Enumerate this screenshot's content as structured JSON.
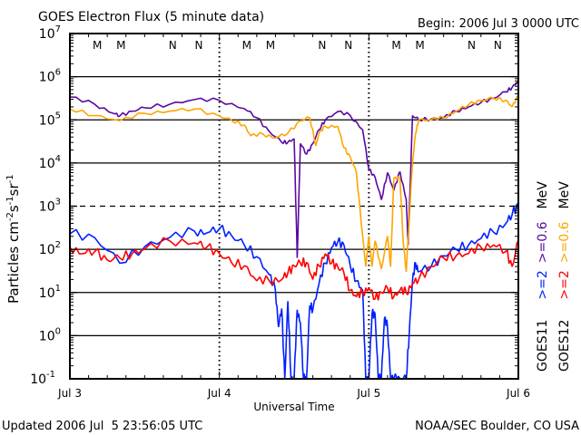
{
  "chart_data": {
    "type": "line",
    "title": "GOES Electron Flux (5 minute data)",
    "begin_label": "Begin: 2006 Jul 3 0000 UTC",
    "xlabel": "Universal Time",
    "ylabel_main": "Particles cm",
    "ylabel_parts": [
      "-2",
      "s",
      "-1",
      "sr",
      "-1"
    ],
    "x_unit": "hours since 2006 Jul 3 0000 UTC",
    "xlim": [
      0,
      72
    ],
    "x_ticks": [
      {
        "h": 0,
        "label": "Jul 3"
      },
      {
        "h": 24,
        "label": "Jul 4"
      },
      {
        "h": 48,
        "label": "Jul 5"
      },
      {
        "h": 72,
        "label": "Jul 6"
      }
    ],
    "y_scale": "log",
    "ylim_log10": [
      -1,
      7
    ],
    "y_ticks": [
      {
        "base": "10",
        "exp": "7"
      },
      {
        "base": "10",
        "exp": "6"
      },
      {
        "base": "10",
        "exp": "5"
      },
      {
        "base": "10",
        "exp": "4"
      },
      {
        "base": "10",
        "exp": "3"
      },
      {
        "base": "10",
        "exp": "2"
      },
      {
        "base": "10",
        "exp": "1"
      },
      {
        "base": "10",
        "exp": "0"
      },
      {
        "base": "10",
        "exp": "-1"
      }
    ],
    "dashed_threshold_log10": 3,
    "grid": true,
    "markers": [
      {
        "label": "M",
        "color": "#ff0000",
        "hours": [
          4.4,
          28.4,
          52.4
        ]
      },
      {
        "label": "M",
        "color": "#0020ff",
        "hours": [
          8.2,
          32.2,
          56.2
        ]
      },
      {
        "label": "N",
        "color": "#ff0000",
        "hours": [
          16.5,
          40.5,
          64.5
        ]
      },
      {
        "label": "N",
        "color": "#0020ff",
        "hours": [
          20.7,
          44.7,
          68.7
        ]
      }
    ],
    "legend": {
      "placement": "right-vertical",
      "columns": [
        {
          "satellite": "GOES11",
          "low": ">=2",
          "low_color": "#0020ff",
          "high": ">=0.6",
          "high_color": "#5a0aa0",
          "unit": "MeV"
        },
        {
          "satellite": "GOES12",
          "low": ">=2",
          "low_color": "#ff0000",
          "high": ">=0.6",
          "high_color": "#ffa500",
          "unit": "MeV"
        }
      ]
    },
    "series": [
      {
        "name": "GOES11 >=0.6 MeV",
        "color": "#5a0aa0",
        "x": [
          0,
          4,
          7,
          8,
          10,
          12,
          16,
          20,
          24,
          28,
          30,
          32,
          34,
          35,
          36,
          36.5,
          37,
          38,
          39,
          40,
          41,
          43,
          45,
          47,
          48,
          49,
          50,
          51,
          52,
          53,
          54,
          54.3,
          55,
          56,
          58,
          60,
          62,
          64,
          66,
          68,
          70,
          71,
          72
        ],
        "log10": [
          5.53,
          5.36,
          5.15,
          5.09,
          5.2,
          5.28,
          5.36,
          5.47,
          5.45,
          5.26,
          5.05,
          4.73,
          4.48,
          4.48,
          4.56,
          1.8,
          4.45,
          4.2,
          4.45,
          4.77,
          5.0,
          5.19,
          5.1,
          4.77,
          3.85,
          3.67,
          3.15,
          3.78,
          3.36,
          3.8,
          3.15,
          2.1,
          5.1,
          5.0,
          5.02,
          5.05,
          5.2,
          5.3,
          5.4,
          5.5,
          5.65,
          5.75,
          5.9
        ]
      },
      {
        "name": "GOES12 >=0.6 MeV",
        "color": "#ffa500",
        "x": [
          0,
          4,
          8,
          12,
          16,
          20,
          24,
          26,
          28,
          29,
          31,
          33,
          35,
          37,
          38.5,
          39.5,
          40,
          41,
          43,
          44,
          45,
          46,
          47,
          47.5,
          48,
          48.5,
          49,
          50,
          51,
          51.5,
          52,
          53,
          53.5,
          54,
          55,
          55.5,
          56,
          58,
          60,
          62,
          64,
          66,
          68,
          70,
          71,
          72
        ],
        "log10": [
          5.25,
          5.1,
          4.98,
          5.15,
          5.2,
          5.25,
          5.09,
          4.98,
          4.88,
          4.63,
          4.67,
          4.58,
          4.69,
          4.98,
          5.05,
          4.4,
          4.69,
          4.85,
          4.85,
          4.35,
          4.14,
          3.78,
          2.31,
          1.6,
          2.3,
          1.6,
          2.2,
          1.54,
          2.31,
          1.6,
          3.64,
          3.64,
          2.2,
          1.48,
          4.0,
          4.68,
          5.0,
          5.0,
          5.05,
          5.2,
          5.35,
          5.45,
          5.5,
          5.45,
          5.3,
          5.55
        ]
      },
      {
        "name": "GOES11 >=2 MeV",
        "color": "#0020ff",
        "x": [
          0,
          4,
          8,
          12,
          16,
          20,
          22,
          24,
          26,
          28,
          30,
          32,
          33,
          33.5,
          34,
          34.5,
          35,
          35.5,
          36,
          36.5,
          37,
          37.5,
          38,
          38.5,
          39,
          40,
          41,
          42,
          43,
          44,
          45,
          46,
          47,
          47.5,
          48,
          48.5,
          49,
          49.5,
          50,
          50.5,
          51,
          51.5,
          52,
          53,
          54,
          54.5,
          55,
          55.5,
          56,
          58,
          60,
          62,
          64,
          66,
          68,
          70,
          71,
          72
        ],
        "log10": [
          2.36,
          2.27,
          1.68,
          2.06,
          2.27,
          2.42,
          2.38,
          2.48,
          2.31,
          2.1,
          1.83,
          1.41,
          1.05,
          0.2,
          0.63,
          -1,
          0.8,
          -1,
          -1,
          0.6,
          0.3,
          -1,
          -1,
          0.7,
          0.6,
          1.2,
          1.68,
          2.04,
          2.17,
          2.1,
          1.62,
          1.27,
          1.05,
          -1,
          -1,
          0.5,
          0.5,
          -1,
          -1,
          0.4,
          0.2,
          -1,
          -1,
          -1,
          -1,
          0.1,
          1.27,
          1.68,
          1.48,
          1.6,
          1.85,
          2.0,
          2.1,
          2.25,
          2.4,
          2.6,
          2.8,
          3.05
        ]
      },
      {
        "name": "GOES12 >=2 MeV",
        "color": "#ff0000",
        "x": [
          0,
          2,
          4,
          6,
          8,
          10,
          12,
          16,
          20,
          22,
          24,
          26,
          28,
          30,
          32,
          34,
          35,
          36,
          37,
          38,
          39,
          40,
          41,
          42,
          43,
          44,
          45,
          46,
          47,
          48,
          49,
          50,
          51,
          52,
          53,
          54,
          55,
          56,
          58,
          60,
          62,
          64,
          66,
          68,
          70,
          71,
          72
        ],
        "log10": [
          2.06,
          1.9,
          1.95,
          1.75,
          1.8,
          1.9,
          2.0,
          2.2,
          2.15,
          2.05,
          1.9,
          1.68,
          1.62,
          1.27,
          1.27,
          1.3,
          1.45,
          1.62,
          1.68,
          1.7,
          1.3,
          1.62,
          1.9,
          1.68,
          1.6,
          1.45,
          1.05,
          0.9,
          1.0,
          1.1,
          0.85,
          1.0,
          1.1,
          0.9,
          1.05,
          1.0,
          1.2,
          1.3,
          1.6,
          1.8,
          1.85,
          1.9,
          2.05,
          2.1,
          1.95,
          1.6,
          2.2
        ]
      }
    ]
  },
  "footer": {
    "updated": "Updated 2006 Jul  5 23:56:05 UTC",
    "credit": "NOAA/SEC Boulder, CO USA"
  }
}
